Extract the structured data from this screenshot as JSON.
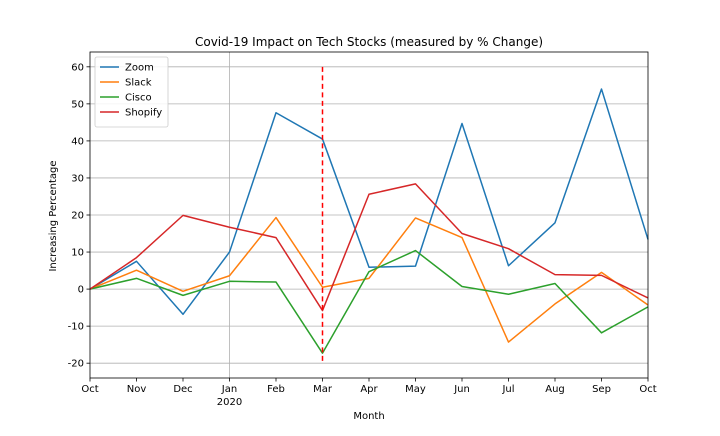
{
  "chart_data": {
    "type": "line",
    "title": "Covid-19 Impact on Tech Stocks (measured by % Change)",
    "xlabel": "Month",
    "ylabel": "Increasing Percentage",
    "x_ticks": [
      {
        "label": "Oct",
        "sub": ""
      },
      {
        "label": "Nov",
        "sub": ""
      },
      {
        "label": "Dec",
        "sub": ""
      },
      {
        "label": "Jan",
        "sub": "2020"
      },
      {
        "label": "Feb",
        "sub": ""
      },
      {
        "label": "Mar",
        "sub": ""
      },
      {
        "label": "Apr",
        "sub": ""
      },
      {
        "label": "May",
        "sub": ""
      },
      {
        "label": "Jun",
        "sub": ""
      },
      {
        "label": "Jul",
        "sub": ""
      },
      {
        "label": "Aug",
        "sub": ""
      },
      {
        "label": "Sep",
        "sub": ""
      },
      {
        "label": "Oct",
        "sub": ""
      }
    ],
    "ylim": [
      -24,
      64
    ],
    "yticks": [
      -20,
      -10,
      0,
      10,
      20,
      30,
      40,
      50,
      60
    ],
    "grid": true,
    "vertical_grid_at": "Jan 2020",
    "legend_position": "top-left",
    "series": [
      {
        "name": "Zoom",
        "color": "#1f77b4",
        "values": [
          0,
          7.5,
          -6.8,
          10,
          47.6,
          40.5,
          5.9,
          6.2,
          44.7,
          6.3,
          17.9,
          54.0,
          13.4
        ]
      },
      {
        "name": "Slack",
        "color": "#ff7f0e",
        "values": [
          0,
          5.1,
          -0.6,
          3.6,
          19.3,
          0.5,
          2.9,
          19.2,
          13.9,
          -14.3,
          -4.0,
          4.5,
          -4.3
        ]
      },
      {
        "name": "Cisco",
        "color": "#2ca02c",
        "values": [
          0,
          2.9,
          -1.7,
          2.1,
          1.9,
          -17.3,
          4.7,
          10.4,
          0.7,
          -1.4,
          1.5,
          -11.8,
          -4.8
        ]
      },
      {
        "name": "Shopify",
        "color": "#d62728",
        "values": [
          0,
          8.5,
          19.9,
          16.7,
          13.9,
          -5.8,
          25.6,
          28.4,
          15.0,
          10.9,
          3.9,
          3.7,
          -2.4
        ]
      }
    ],
    "annotations": [
      {
        "type": "vertical-dashed-line",
        "at_index": 5,
        "from": -20,
        "to": 60,
        "color": "#ff0000"
      }
    ]
  }
}
